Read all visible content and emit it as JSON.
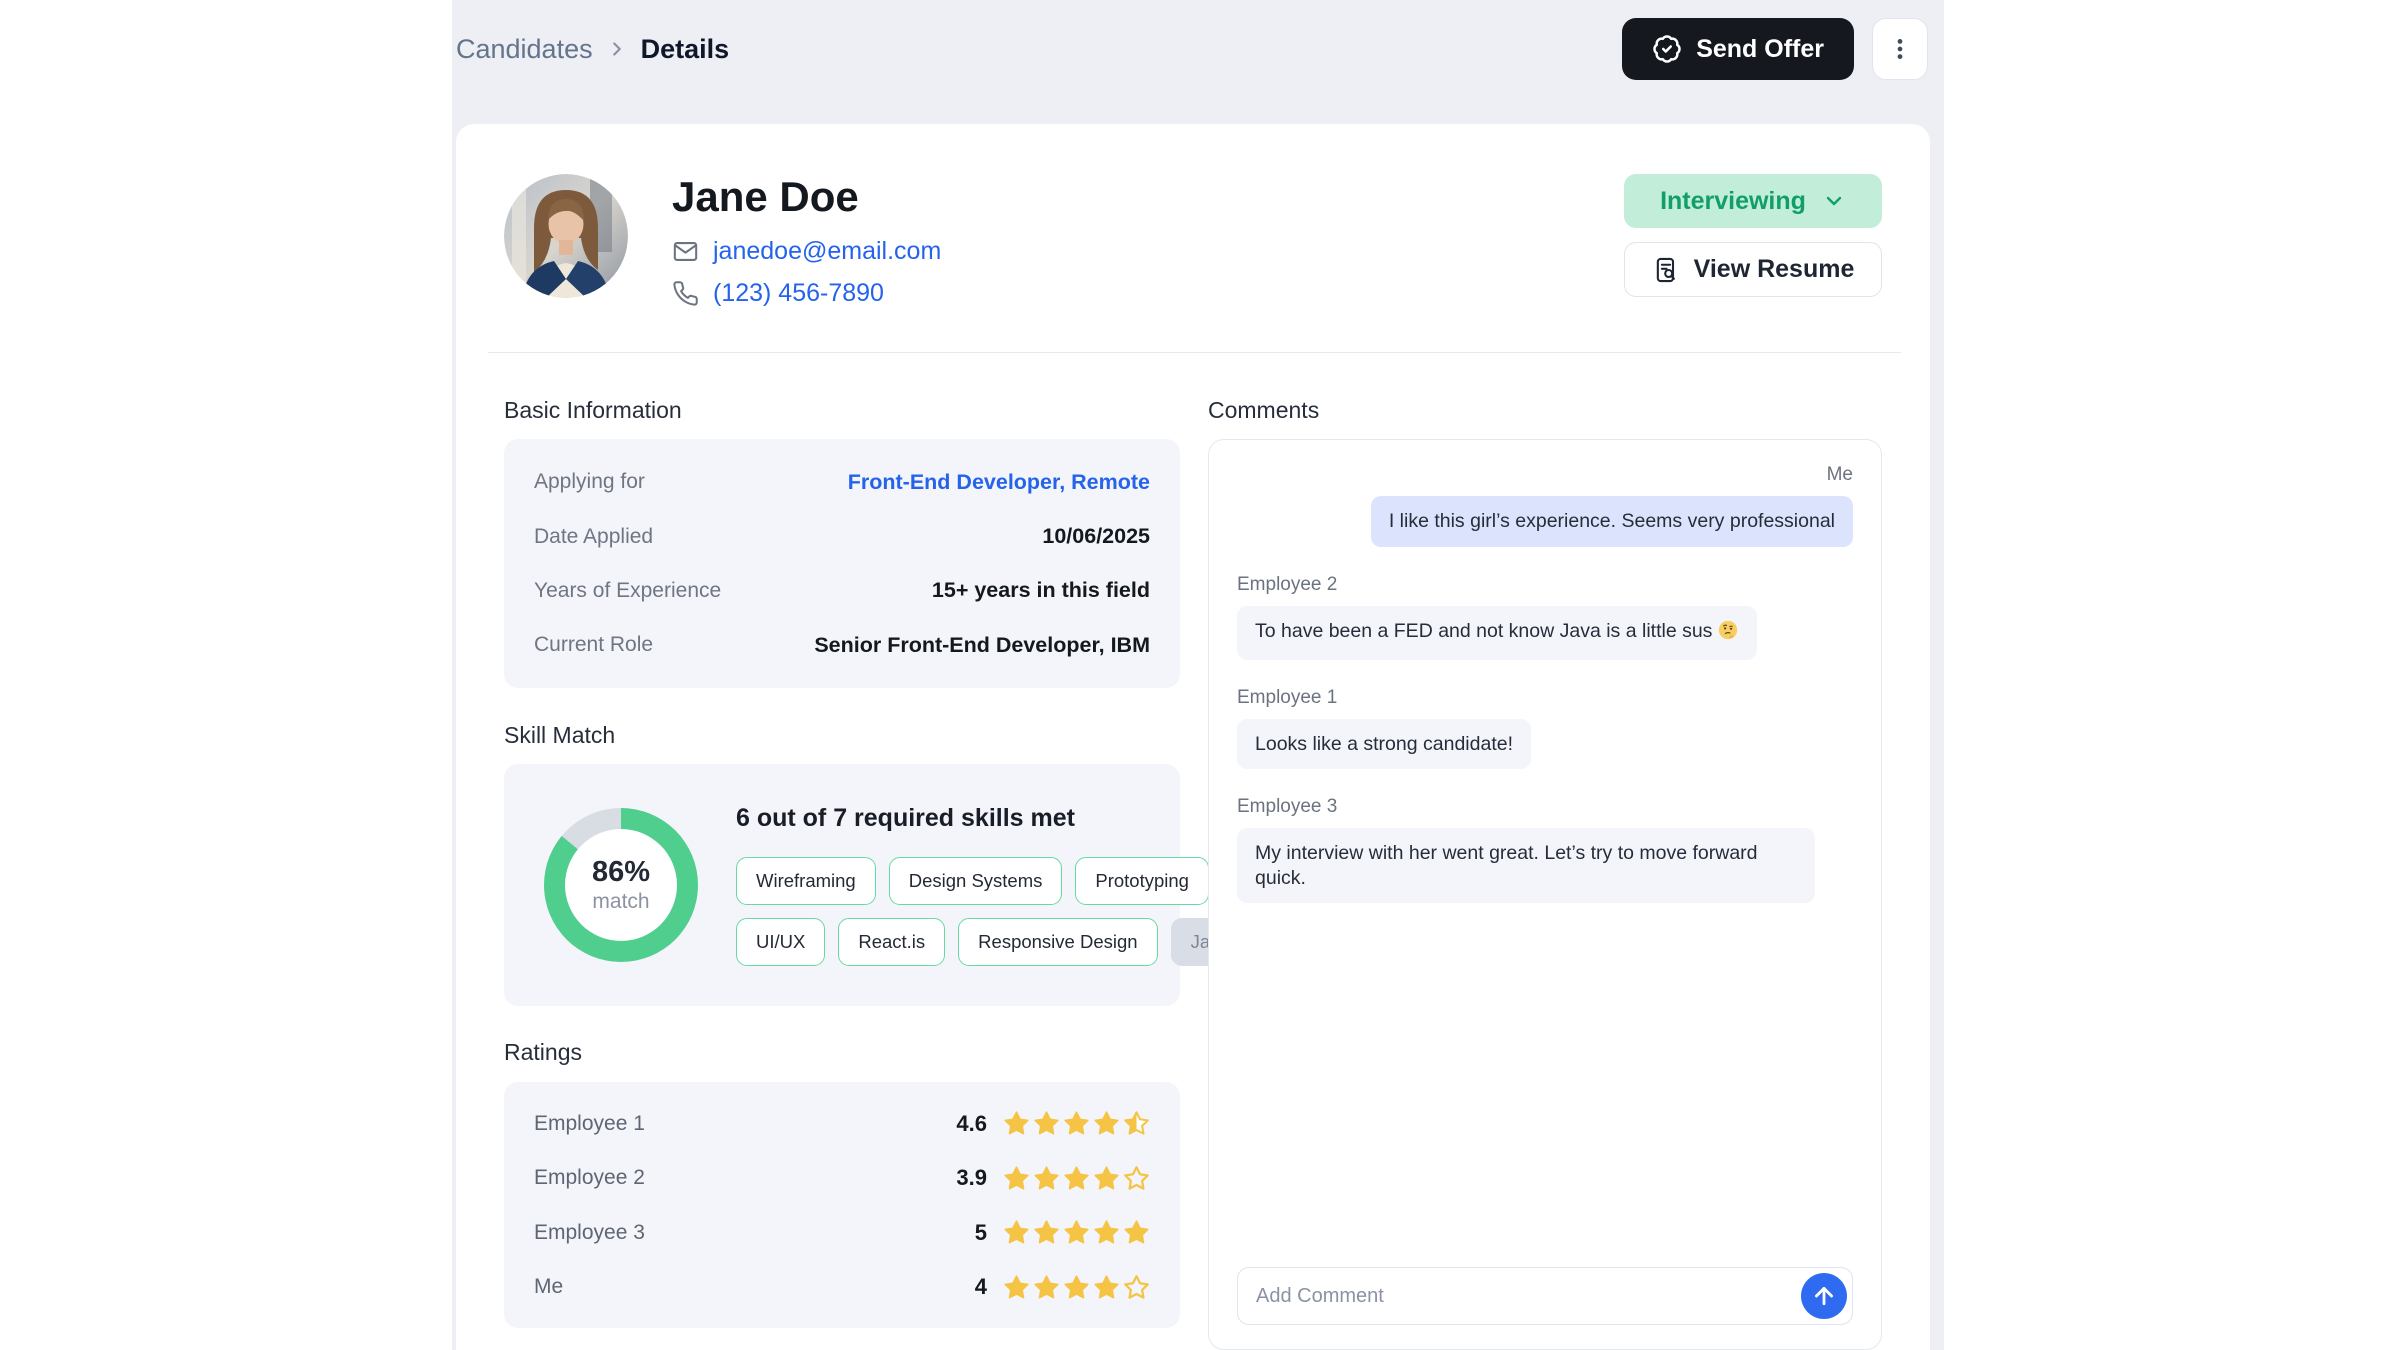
{
  "breadcrumb": {
    "parent": "Candidates",
    "current": "Details"
  },
  "topbar": {
    "send_offer_label": "Send Offer"
  },
  "profile": {
    "name": "Jane Doe",
    "email": "janedoe@email.com",
    "phone": "(123) 456-7890",
    "status": "Interviewing",
    "view_resume_label": "View Resume"
  },
  "basic_info": {
    "title": "Basic Information",
    "rows": [
      {
        "label": "Applying for",
        "value": "Front-End Developer, Remote",
        "link": true
      },
      {
        "label": "Date Applied",
        "value": "10/06/2025",
        "link": false
      },
      {
        "label": "Years of Experience",
        "value": "15+ years in this field",
        "link": false
      },
      {
        "label": "Current Role",
        "value": "Senior Front-End Developer, IBM",
        "link": false
      }
    ]
  },
  "skill_match": {
    "title": "Skill Match",
    "headline": "6 out of 7 required skills met",
    "match_percent": 86,
    "percent_label": "86%",
    "match_label": "match",
    "skill_rows": [
      [
        {
          "label": "Wireframing",
          "matched": true
        },
        {
          "label": "Design Systems",
          "matched": true
        },
        {
          "label": "Prototyping",
          "matched": true
        }
      ],
      [
        {
          "label": "UI/UX",
          "matched": true
        },
        {
          "label": "React.is",
          "matched": true
        },
        {
          "label": "Responsive Design",
          "matched": true
        },
        {
          "label": "Java",
          "matched": false
        }
      ]
    ]
  },
  "ratings": {
    "title": "Ratings",
    "rows": [
      {
        "name": "Employee 1",
        "value": "4.6",
        "stars": 4.5
      },
      {
        "name": "Employee 2",
        "value": "3.9",
        "stars": 4
      },
      {
        "name": "Employee 3",
        "value": "5",
        "stars": 5
      },
      {
        "name": "Me",
        "value": "4",
        "stars": 4
      }
    ]
  },
  "comments": {
    "title": "Comments",
    "messages": [
      {
        "author": "Me",
        "side": "right",
        "text": "I like this girl’s experience. Seems very professional",
        "emoji": ""
      },
      {
        "author": "Employee 2",
        "side": "left",
        "text": "To have been a FED and not know Java is a little sus",
        "emoji": "🤔"
      },
      {
        "author": "Employee 1",
        "side": "left",
        "text": "Looks like a strong candidate!",
        "emoji": ""
      },
      {
        "author": "Employee 3",
        "side": "left",
        "text": "My interview with her went great. Let’s try to move forward quick.",
        "emoji": ""
      }
    ],
    "input_placeholder": "Add Comment"
  },
  "colors": {
    "topbar_bg": "#edeff4",
    "card_bg": "#ffffff",
    "subcard_bg": "#f3f5fa",
    "dark_button_bg": "#15181e",
    "accent_blue": "#2563eb",
    "send_button_blue": "#2f6bf0",
    "status_green_bg": "#c2eed9",
    "status_green_text": "#119e68",
    "donut_green": "#4fce8e",
    "donut_track": "#d8dce3",
    "chip_border": "#67d9a3",
    "muted_chip_bg": "#d8dde6",
    "muted_chip_text": "#7c8696",
    "star_yellow": "#f5c445",
    "me_bubble_bg": "#dbe4fc",
    "other_bubble_bg": "#f3f5fa",
    "text_dark": "#181c25",
    "text_gray": "#6b7280",
    "border_light": "#e5e9f2"
  }
}
